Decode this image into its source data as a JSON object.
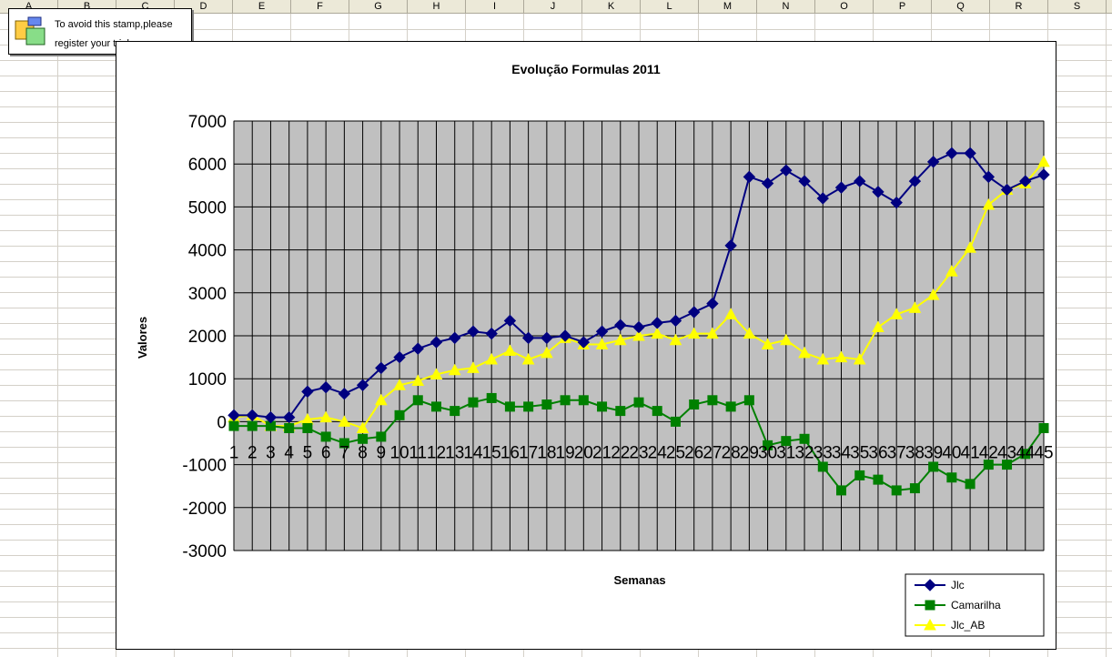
{
  "spreadsheet": {
    "columns": [
      "A",
      "B",
      "C",
      "D",
      "E",
      "F",
      "G",
      "H",
      "I",
      "J",
      "K",
      "L",
      "M",
      "N",
      "O",
      "P",
      "Q",
      "R",
      "S"
    ]
  },
  "stamp": {
    "line1": "To avoid this stamp,please",
    "line2": "register your trial copy"
  },
  "chart_data": {
    "type": "line",
    "title": "Evolução Formulas 2011",
    "xlabel": "Semanas",
    "ylabel": "Valores",
    "ylim": [
      -3000,
      7000
    ],
    "yticks": [
      -3000,
      -2000,
      -1000,
      0,
      1000,
      2000,
      3000,
      4000,
      5000,
      6000,
      7000
    ],
    "ytick_labels": [
      "-3000",
      "-2000",
      "-1000",
      "0",
      "1000",
      "2000",
      "3000",
      "4000",
      "5000",
      "6000",
      "7000"
    ],
    "categories": [
      "1",
      "2",
      "3",
      "4",
      "5",
      "6",
      "7",
      "8",
      "9",
      "10",
      "11",
      "12",
      "13",
      "14",
      "15",
      "16",
      "17",
      "18",
      "19",
      "20",
      "21",
      "22",
      "23",
      "24",
      "25",
      "26",
      "27",
      "28",
      "29",
      "30",
      "31",
      "32",
      "33",
      "34",
      "35",
      "36",
      "37",
      "38",
      "39",
      "40",
      "41",
      "42",
      "43",
      "44",
      "45"
    ],
    "grid": true,
    "plot_background": "#c0c0c0",
    "legend_position": "bottom-right",
    "series": [
      {
        "name": "Jlc",
        "color": "#000080",
        "marker": "diamond",
        "values": [
          150,
          150,
          100,
          100,
          700,
          800,
          650,
          850,
          1250,
          1500,
          1700,
          1850,
          1950,
          2100,
          2050,
          2350,
          1950,
          1950,
          2000,
          1850,
          2100,
          2250,
          2200,
          2300,
          2350,
          2550,
          2750,
          4100,
          5700,
          5550,
          5850,
          5600,
          5200,
          5450,
          5600,
          5350,
          5100,
          5600,
          6050,
          6250,
          6250,
          5700,
          5400,
          5600,
          5750
        ]
      },
      {
        "name": "Camarilha",
        "color": "#008000",
        "marker": "square",
        "values": [
          -100,
          -100,
          -100,
          -150,
          -150,
          -350,
          -500,
          -400,
          -350,
          150,
          500,
          350,
          250,
          450,
          550,
          350,
          350,
          400,
          500,
          500,
          350,
          250,
          450,
          250,
          0,
          400,
          500,
          350,
          500,
          -550,
          -450,
          -400,
          -1050,
          -1600,
          -1250,
          -1350,
          -1600,
          -1550,
          -1050,
          -1300,
          -1450,
          -1000,
          -1000,
          -750,
          -150
        ]
      },
      {
        "name": "Jlc_AB",
        "color": "#ffff00",
        "marker": "triangle",
        "values": [
          100,
          150,
          -100,
          -100,
          50,
          100,
          0,
          -150,
          500,
          850,
          950,
          1100,
          1200,
          1250,
          1450,
          1650,
          1450,
          1600,
          1950,
          1800,
          1800,
          1900,
          2000,
          2050,
          1900,
          2050,
          2050,
          2500,
          2050,
          1800,
          1900,
          1600,
          1450,
          1500,
          1450,
          2200,
          2500,
          2650,
          2950,
          3500,
          4050,
          5050,
          5400,
          5550,
          6050
        ]
      }
    ]
  }
}
